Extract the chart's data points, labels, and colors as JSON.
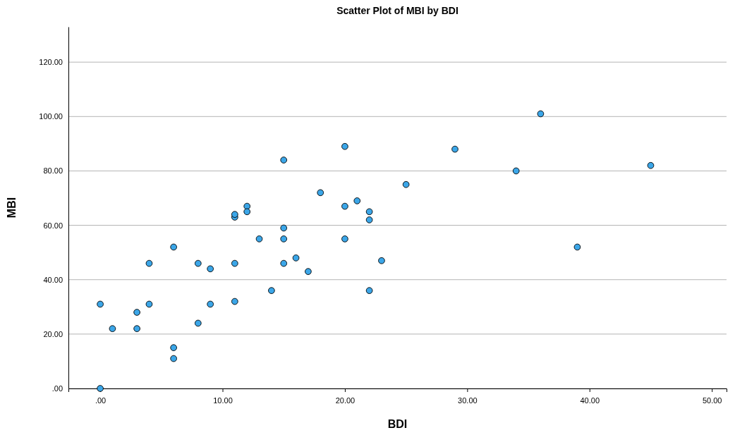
{
  "chart_data": {
    "type": "scatter",
    "title": "Scatter Plot of MBI by BDI",
    "xlabel": "BDI",
    "ylabel": "MBI",
    "xlim": [
      -2.6,
      51.2
    ],
    "ylim": [
      0,
      133
    ],
    "xticks": [
      {
        "value": 0,
        "label": ".00"
      },
      {
        "value": 10,
        "label": "10.00"
      },
      {
        "value": 20,
        "label": "20.00"
      },
      {
        "value": 30,
        "label": "30.00"
      },
      {
        "value": 40,
        "label": "40.00"
      },
      {
        "value": 50,
        "label": "50.00"
      }
    ],
    "yticks": [
      {
        "value": 0,
        "label": ".00"
      },
      {
        "value": 20,
        "label": "20.00"
      },
      {
        "value": 40,
        "label": "40.00"
      },
      {
        "value": 60,
        "label": "60.00"
      },
      {
        "value": 80,
        "label": "80.00"
      },
      {
        "value": 100,
        "label": "100.00"
      },
      {
        "value": 120,
        "label": "120.00"
      }
    ],
    "grid": "y",
    "marker": "circle",
    "series": [
      {
        "color": "#3ba6e8",
        "x": [
          0,
          0,
          1,
          3,
          3,
          4,
          4,
          6,
          6,
          6,
          8,
          8,
          9,
          9,
          11,
          11,
          11,
          11,
          12,
          12,
          13,
          14,
          15,
          15,
          15,
          15,
          16,
          17,
          18,
          20,
          20,
          20,
          21,
          22,
          22,
          22,
          23,
          25,
          29,
          34,
          36,
          39,
          45
        ],
        "values": [
          0,
          31,
          22,
          28,
          22,
          46,
          31,
          52,
          15,
          11,
          46,
          24,
          44,
          31,
          63,
          64,
          46,
          32,
          67,
          65,
          55,
          36,
          84,
          59,
          55,
          46,
          48,
          43,
          72,
          89,
          67,
          55,
          69,
          65,
          62,
          36,
          47,
          75,
          88,
          80,
          101,
          52,
          82
        ]
      }
    ]
  }
}
